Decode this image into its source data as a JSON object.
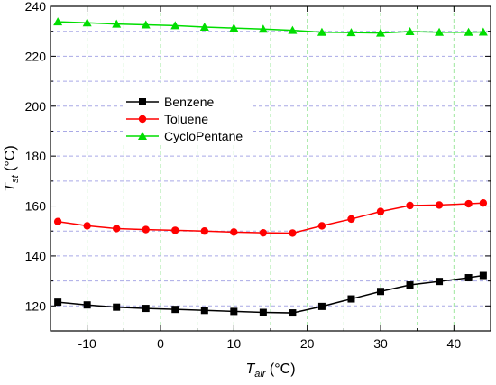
{
  "chart_data": {
    "type": "line",
    "xlabel_main": "T",
    "xlabel_sub": "air",
    "xlabel_unit": " (°C)",
    "ylabel_main": "T",
    "ylabel_sub": "st",
    "ylabel_unit": " (°C)",
    "xlim": [
      -15,
      45
    ],
    "ylim": [
      110,
      240
    ],
    "x_ticks": [
      -10,
      0,
      10,
      20,
      30,
      40
    ],
    "y_ticks": [
      120,
      140,
      160,
      180,
      200,
      220,
      240
    ],
    "x_tick_labels": [
      "-10",
      "0",
      "10",
      "20",
      "30",
      "40"
    ],
    "y_tick_labels": [
      "120",
      "140",
      "160",
      "180",
      "200",
      "220",
      "240"
    ],
    "grid": true,
    "legend_position": "upper-left-center",
    "series": [
      {
        "name": "Benzene",
        "color": "#000000",
        "marker": "square",
        "x": [
          -14,
          -10,
          -6,
          -2,
          2,
          6,
          10,
          14,
          18,
          22,
          26,
          30,
          34,
          38,
          42,
          44
        ],
        "y": [
          121.5,
          120.4,
          119.5,
          119.0,
          118.6,
          118.2,
          117.8,
          117.4,
          117.2,
          119.8,
          122.8,
          125.8,
          128.4,
          129.8,
          131.3,
          132.2
        ]
      },
      {
        "name": "Toluene",
        "color": "#ff0000",
        "marker": "circle",
        "x": [
          -14,
          -10,
          -6,
          -2,
          2,
          6,
          10,
          14,
          18,
          22,
          26,
          30,
          34,
          38,
          42,
          44
        ],
        "y": [
          153.8,
          152.1,
          151.0,
          150.6,
          150.3,
          150.0,
          149.6,
          149.3,
          149.2,
          152.1,
          154.8,
          157.8,
          160.2,
          160.4,
          160.9,
          161.2
        ]
      },
      {
        "name": "CycloPentane",
        "color": "#00dd00",
        "marker": "triangle",
        "x": [
          -14,
          -10,
          -6,
          -2,
          2,
          6,
          10,
          14,
          18,
          22,
          26,
          30,
          34,
          38,
          42,
          44
        ],
        "y": [
          233.8,
          233.4,
          232.9,
          232.6,
          232.3,
          231.7,
          231.3,
          230.9,
          230.4,
          229.6,
          229.5,
          229.3,
          229.9,
          229.6,
          229.6,
          229.7
        ]
      }
    ]
  }
}
